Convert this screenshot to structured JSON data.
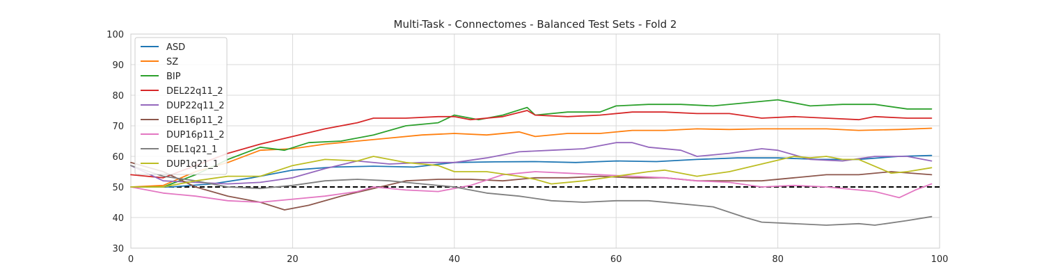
{
  "chart_data": {
    "type": "line",
    "title": "Multi-Task - Connectomes - Balanced Test Sets - Fold 2",
    "xlabel": "",
    "ylabel": "",
    "xlim": [
      0,
      100
    ],
    "ylim": [
      30,
      100
    ],
    "xticks": [
      "0",
      "20",
      "40",
      "60",
      "80",
      "100"
    ],
    "yticks": [
      "30",
      "40",
      "50",
      "60",
      "70",
      "80",
      "90",
      "100"
    ],
    "grid": true,
    "legend_position": "top-left",
    "reference_line": {
      "y": 50,
      "style": "dashed",
      "color": "#000000"
    },
    "series": [
      {
        "name": "ASD",
        "color": "#1f77b4",
        "points": [
          [
            0,
            50
          ],
          [
            5,
            50
          ],
          [
            10,
            51
          ],
          [
            15,
            53
          ],
          [
            20,
            55.5
          ],
          [
            25,
            56.5
          ],
          [
            30,
            56.8
          ],
          [
            35,
            56.5
          ],
          [
            40,
            58
          ],
          [
            45,
            58.2
          ],
          [
            50,
            58.3
          ],
          [
            55,
            58
          ],
          [
            60,
            58.5
          ],
          [
            65,
            58.3
          ],
          [
            70,
            59
          ],
          [
            75,
            59.5
          ],
          [
            80,
            59.5
          ],
          [
            85,
            59
          ],
          [
            90,
            59
          ],
          [
            95,
            60
          ],
          [
            99,
            60.3
          ]
        ]
      },
      {
        "name": "SZ",
        "color": "#ff7f0e",
        "points": [
          [
            0,
            50
          ],
          [
            4,
            50.5
          ],
          [
            8,
            55
          ],
          [
            12,
            58
          ],
          [
            16,
            62
          ],
          [
            20,
            62.5
          ],
          [
            24,
            64
          ],
          [
            28,
            65
          ],
          [
            32,
            66
          ],
          [
            36,
            67
          ],
          [
            40,
            67.5
          ],
          [
            44,
            67
          ],
          [
            48,
            68
          ],
          [
            50,
            66.5
          ],
          [
            54,
            67.5
          ],
          [
            58,
            67.5
          ],
          [
            62,
            68.5
          ],
          [
            66,
            68.5
          ],
          [
            70,
            69
          ],
          [
            74,
            68.8
          ],
          [
            78,
            69
          ],
          [
            82,
            69
          ],
          [
            86,
            69
          ],
          [
            90,
            68.5
          ],
          [
            95,
            68.8
          ],
          [
            99,
            69.2
          ]
        ]
      },
      {
        "name": "BIP",
        "color": "#2ca02c",
        "points": [
          [
            0,
            50
          ],
          [
            4,
            50
          ],
          [
            8,
            54
          ],
          [
            12,
            59
          ],
          [
            16,
            63
          ],
          [
            19,
            62
          ],
          [
            22,
            64.5
          ],
          [
            26,
            65
          ],
          [
            30,
            67
          ],
          [
            34,
            70
          ],
          [
            38,
            71
          ],
          [
            40,
            73.5
          ],
          [
            43,
            72
          ],
          [
            46,
            73.5
          ],
          [
            49,
            76
          ],
          [
            50,
            73.5
          ],
          [
            54,
            74.5
          ],
          [
            58,
            74.5
          ],
          [
            60,
            76.5
          ],
          [
            64,
            77
          ],
          [
            68,
            77
          ],
          [
            72,
            76.5
          ],
          [
            76,
            77.5
          ],
          [
            80,
            78.5
          ],
          [
            84,
            76.5
          ],
          [
            88,
            77
          ],
          [
            92,
            77
          ],
          [
            96,
            75.5
          ],
          [
            99,
            75.5
          ]
        ]
      },
      {
        "name": "DEL22q11_2",
        "color": "#d62728",
        "points": [
          [
            0,
            54
          ],
          [
            4,
            53
          ],
          [
            8,
            57
          ],
          [
            12,
            61
          ],
          [
            16,
            64
          ],
          [
            20,
            66.5
          ],
          [
            24,
            69
          ],
          [
            28,
            71
          ],
          [
            30,
            72.5
          ],
          [
            34,
            72.5
          ],
          [
            38,
            73
          ],
          [
            40,
            73
          ],
          [
            42,
            72
          ],
          [
            46,
            73
          ],
          [
            49,
            75
          ],
          [
            50,
            73.5
          ],
          [
            54,
            73
          ],
          [
            58,
            73.5
          ],
          [
            62,
            74.5
          ],
          [
            66,
            74.5
          ],
          [
            70,
            74
          ],
          [
            74,
            74
          ],
          [
            78,
            72.5
          ],
          [
            82,
            73
          ],
          [
            86,
            72.5
          ],
          [
            90,
            72
          ],
          [
            92,
            73
          ],
          [
            96,
            72.5
          ],
          [
            99,
            72.5
          ]
        ]
      },
      {
        "name": "DUP22q11_2",
        "color": "#9467bd",
        "points": [
          [
            0,
            57
          ],
          [
            4,
            52
          ],
          [
            8,
            51.5
          ],
          [
            12,
            51
          ],
          [
            16,
            51.5
          ],
          [
            20,
            53
          ],
          [
            24,
            56
          ],
          [
            28,
            58.5
          ],
          [
            32,
            57.5
          ],
          [
            36,
            58
          ],
          [
            40,
            58
          ],
          [
            44,
            59.5
          ],
          [
            48,
            61.5
          ],
          [
            52,
            62
          ],
          [
            56,
            62.5
          ],
          [
            60,
            64.5
          ],
          [
            62,
            64.5
          ],
          [
            64,
            63
          ],
          [
            68,
            62
          ],
          [
            70,
            60
          ],
          [
            74,
            61
          ],
          [
            78,
            62.5
          ],
          [
            80,
            62
          ],
          [
            84,
            59
          ],
          [
            88,
            58.5
          ],
          [
            92,
            60
          ],
          [
            96,
            60
          ],
          [
            99,
            58.5
          ]
        ]
      },
      {
        "name": "DEL16p11_2",
        "color": "#8c564b",
        "points": [
          [
            0,
            58
          ],
          [
            4,
            55
          ],
          [
            8,
            50
          ],
          [
            12,
            47
          ],
          [
            16,
            45
          ],
          [
            19,
            42.5
          ],
          [
            22,
            44
          ],
          [
            26,
            47
          ],
          [
            30,
            49.5
          ],
          [
            34,
            52
          ],
          [
            38,
            52.5
          ],
          [
            42,
            52.5
          ],
          [
            46,
            52
          ],
          [
            50,
            53
          ],
          [
            54,
            53
          ],
          [
            58,
            53.5
          ],
          [
            62,
            53
          ],
          [
            66,
            53
          ],
          [
            70,
            52
          ],
          [
            74,
            52
          ],
          [
            78,
            52
          ],
          [
            82,
            53
          ],
          [
            86,
            54
          ],
          [
            90,
            54
          ],
          [
            94,
            55
          ],
          [
            99,
            54
          ]
        ]
      },
      {
        "name": "DUP16p11_2",
        "color": "#e377c2",
        "points": [
          [
            0,
            50
          ],
          [
            4,
            48
          ],
          [
            8,
            47
          ],
          [
            12,
            45.5
          ],
          [
            16,
            45
          ],
          [
            20,
            46
          ],
          [
            24,
            47
          ],
          [
            28,
            48.5
          ],
          [
            30,
            50
          ],
          [
            34,
            49
          ],
          [
            38,
            48.5
          ],
          [
            42,
            50.5
          ],
          [
            46,
            54
          ],
          [
            50,
            55
          ],
          [
            54,
            54.5
          ],
          [
            58,
            54
          ],
          [
            62,
            53.5
          ],
          [
            66,
            53
          ],
          [
            70,
            52
          ],
          [
            74,
            51.5
          ],
          [
            78,
            50
          ],
          [
            82,
            50.5
          ],
          [
            86,
            50
          ],
          [
            90,
            49
          ],
          [
            92,
            48.5
          ],
          [
            95,
            46.5
          ],
          [
            97,
            49
          ],
          [
            99,
            51
          ]
        ]
      },
      {
        "name": "DEL1q21_1",
        "color": "#7f7f7f",
        "points": [
          [
            0,
            57
          ],
          [
            4,
            53.5
          ],
          [
            8,
            52
          ],
          [
            12,
            50
          ],
          [
            16,
            49.5
          ],
          [
            20,
            50.5
          ],
          [
            24,
            52
          ],
          [
            28,
            52.5
          ],
          [
            32,
            52
          ],
          [
            36,
            51
          ],
          [
            40,
            50
          ],
          [
            44,
            48
          ],
          [
            48,
            47
          ],
          [
            52,
            45.5
          ],
          [
            56,
            45
          ],
          [
            60,
            45.5
          ],
          [
            64,
            45.5
          ],
          [
            68,
            44.5
          ],
          [
            72,
            43.5
          ],
          [
            76,
            40
          ],
          [
            78,
            38.5
          ],
          [
            82,
            38
          ],
          [
            86,
            37.5
          ],
          [
            90,
            38
          ],
          [
            92,
            37.5
          ],
          [
            96,
            39
          ],
          [
            99,
            40.3
          ]
        ]
      },
      {
        "name": "DUP1q21_1",
        "color": "#bcbd22",
        "points": [
          [
            0,
            50
          ],
          [
            4,
            50
          ],
          [
            8,
            52
          ],
          [
            12,
            53.5
          ],
          [
            16,
            53.5
          ],
          [
            20,
            57
          ],
          [
            24,
            59
          ],
          [
            28,
            58.5
          ],
          [
            30,
            60
          ],
          [
            34,
            58
          ],
          [
            38,
            57
          ],
          [
            40,
            55
          ],
          [
            44,
            55
          ],
          [
            48,
            53.5
          ],
          [
            50,
            52.5
          ],
          [
            52,
            51
          ],
          [
            56,
            52
          ],
          [
            60,
            53.5
          ],
          [
            64,
            55
          ],
          [
            66,
            55.5
          ],
          [
            70,
            53.5
          ],
          [
            74,
            55
          ],
          [
            78,
            57.5
          ],
          [
            82,
            60
          ],
          [
            84,
            59.5
          ],
          [
            86,
            60
          ],
          [
            88,
            59
          ],
          [
            90,
            59
          ],
          [
            94,
            54.5
          ],
          [
            96,
            55
          ],
          [
            99,
            56.3
          ]
        ]
      }
    ]
  }
}
